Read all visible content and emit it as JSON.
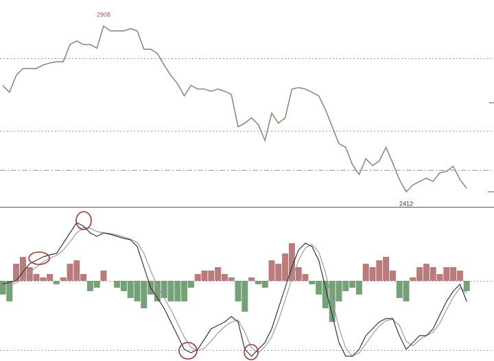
{
  "chart_data": [
    {
      "type": "line",
      "color": "#8a8a80",
      "ylim": [
        2389,
        2965
      ],
      "values": [
        2727,
        2708,
        2755,
        2774,
        2774,
        2774,
        2784,
        2790,
        2793,
        2793,
        2841,
        2851,
        2841,
        2841,
        2831,
        2893,
        2879,
        2879,
        2879,
        2885,
        2879,
        2828,
        2828,
        2816,
        2784,
        2755,
        2732,
        2698,
        2727,
        2717,
        2717,
        2711,
        2717,
        2711,
        2702,
        2612,
        2622,
        2637,
        2618,
        2574,
        2650,
        2622,
        2637,
        2717,
        2721,
        2717,
        2708,
        2698,
        2660,
        2612,
        2565,
        2555,
        2507,
        2479,
        2523,
        2504,
        2517,
        2555,
        2511,
        2465,
        2431,
        2450,
        2460,
        2469,
        2460,
        2484,
        2488,
        2502,
        2465,
        2441
      ],
      "annotations": [
        {
          "value": 2908,
          "label": "2908",
          "color": "#b05050"
        },
        {
          "value": 2412,
          "label": "2412",
          "color": "#333333"
        }
      ],
      "hlines": [
        {
          "value": 2803,
          "style": "dotted"
        },
        {
          "value": 2601,
          "style": "dotted"
        },
        {
          "value": 2492,
          "style": "dashdot"
        }
      ]
    },
    {
      "type": "macd",
      "up_color": "#b06464",
      "down_color": "#5e9160",
      "dif_color": "#333333",
      "dea_color": "#9a9a9a",
      "ylim": [
        -117,
        107
      ],
      "histogram": [
        -20,
        -30,
        25,
        35,
        20,
        10,
        5,
        10,
        -5,
        5,
        25,
        30,
        10,
        -15,
        -10,
        15,
        0,
        -10,
        -15,
        -25,
        -30,
        -40,
        -20,
        -30,
        -25,
        -30,
        -30,
        -30,
        -10,
        10,
        15,
        15,
        20,
        10,
        5,
        -30,
        -45,
        5,
        -5,
        -10,
        30,
        25,
        40,
        55,
        20,
        10,
        -5,
        -20,
        -40,
        -60,
        -30,
        -15,
        -10,
        -20,
        25,
        20,
        30,
        35,
        15,
        -25,
        -30,
        5,
        20,
        25,
        20,
        10,
        20,
        20,
        15,
        -15
      ],
      "dif": [
        -5,
        -2,
        0,
        13,
        25,
        30,
        35,
        38,
        40,
        55,
        70,
        85,
        80,
        70,
        65,
        70,
        68,
        65,
        62,
        60,
        50,
        20,
        -10,
        -25,
        -40,
        -60,
        -80,
        -100,
        -105,
        -100,
        -85,
        -70,
        -65,
        -60,
        -52,
        -60,
        -100,
        -110,
        -100,
        -90,
        -70,
        -40,
        -10,
        20,
        45,
        55,
        50,
        30,
        -10,
        -50,
        -90,
        -110,
        -110,
        -100,
        -80,
        -70,
        -60,
        -55,
        -55,
        -80,
        -100,
        -90,
        -80,
        -80,
        -70,
        -50,
        -30,
        -15,
        -5,
        -30
      ],
      "dea": [
        -8,
        -6,
        -3,
        3,
        12,
        20,
        28,
        33,
        37,
        45,
        57,
        70,
        78,
        77,
        72,
        70,
        69,
        67,
        64,
        61,
        56,
        40,
        15,
        -8,
        -25,
        -42,
        -62,
        -82,
        -97,
        -102,
        -98,
        -88,
        -76,
        -67,
        -60,
        -57,
        -75,
        -98,
        -105,
        -96,
        -82,
        -58,
        -28,
        3,
        30,
        48,
        53,
        42,
        12,
        -28,
        -68,
        -98,
        -110,
        -105,
        -92,
        -78,
        -66,
        -58,
        -56,
        -65,
        -88,
        -95,
        -86,
        -80,
        -75,
        -62,
        -42,
        -24,
        -10,
        -18
      ],
      "hlines": [
        {
          "value": 0,
          "style": "dotted"
        },
        {
          "value": -101,
          "style": "dotted"
        }
      ]
    }
  ]
}
